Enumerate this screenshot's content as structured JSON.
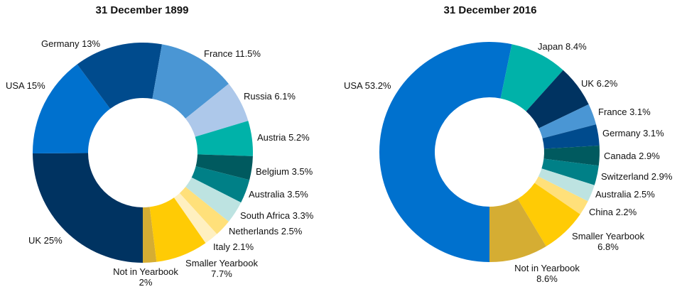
{
  "chart_data": [
    {
      "type": "pie",
      "title": "31 December 1899",
      "slices": [
        {
          "label": "UK",
          "pct_text": "25%",
          "value": 25.0,
          "color": "#003361"
        },
        {
          "label": "USA",
          "pct_text": "15%",
          "value": 15.0,
          "color": "#0071CE"
        },
        {
          "label": "Germany",
          "pct_text": "13%",
          "value": 13.0,
          "color": "#004B8D"
        },
        {
          "label": "France",
          "pct_text": "11.5%",
          "value": 11.5,
          "color": "#4A96D4"
        },
        {
          "label": "Russia",
          "pct_text": "6.1%",
          "value": 6.1,
          "color": "#ADC8EA"
        },
        {
          "label": "Austria",
          "pct_text": "5.2%",
          "value": 5.2,
          "color": "#00B2A9"
        },
        {
          "label": "Belgium",
          "pct_text": "3.5%",
          "value": 3.5,
          "color": "#005A5F"
        },
        {
          "label": "Australia",
          "pct_text": "3.5%",
          "value": 3.5,
          "color": "#008087"
        },
        {
          "label": "South Africa",
          "pct_text": "3.3%",
          "value": 3.3,
          "color": "#BDE3E1"
        },
        {
          "label": "Netherlands",
          "pct_text": "2.5%",
          "value": 2.5,
          "color": "#FFE07A"
        },
        {
          "label": "Italy",
          "pct_text": "2.1%",
          "value": 2.1,
          "color": "#FFF0C0"
        },
        {
          "label": "Smaller Yearbook",
          "pct_text": "7.7%",
          "value": 7.7,
          "color": "#FFCB05"
        },
        {
          "label": "Not in Yearbook",
          "pct_text": "2%",
          "value": 2.0,
          "color": "#D5AD33"
        }
      ]
    },
    {
      "type": "pie",
      "title": "31 December 2016",
      "slices": [
        {
          "label": "USA",
          "pct_text": "53.2%",
          "value": 53.2,
          "color": "#0071CE"
        },
        {
          "label": "Japan",
          "pct_text": "8.4%",
          "value": 8.4,
          "color": "#00B2A9"
        },
        {
          "label": "UK",
          "pct_text": "6.2%",
          "value": 6.2,
          "color": "#003361"
        },
        {
          "label": "France",
          "pct_text": "3.1%",
          "value": 3.1,
          "color": "#4A96D4"
        },
        {
          "label": "Germany",
          "pct_text": "3.1%",
          "value": 3.1,
          "color": "#004B8D"
        },
        {
          "label": "Canada",
          "pct_text": "2.9%",
          "value": 2.9,
          "color": "#005A5F"
        },
        {
          "label": "Switzerland",
          "pct_text": "2.9%",
          "value": 2.9,
          "color": "#008087"
        },
        {
          "label": "Australia",
          "pct_text": "2.5%",
          "value": 2.5,
          "color": "#BDE3E1"
        },
        {
          "label": "China",
          "pct_text": "2.2%",
          "value": 2.2,
          "color": "#FFE07A"
        },
        {
          "label": "Smaller Yearbook",
          "pct_text": "6.8%",
          "value": 6.8,
          "color": "#FFCB05"
        },
        {
          "label": "Not in Yearbook",
          "pct_text": "8.6%",
          "value": 8.6,
          "color": "#D5AD33"
        }
      ]
    }
  ]
}
